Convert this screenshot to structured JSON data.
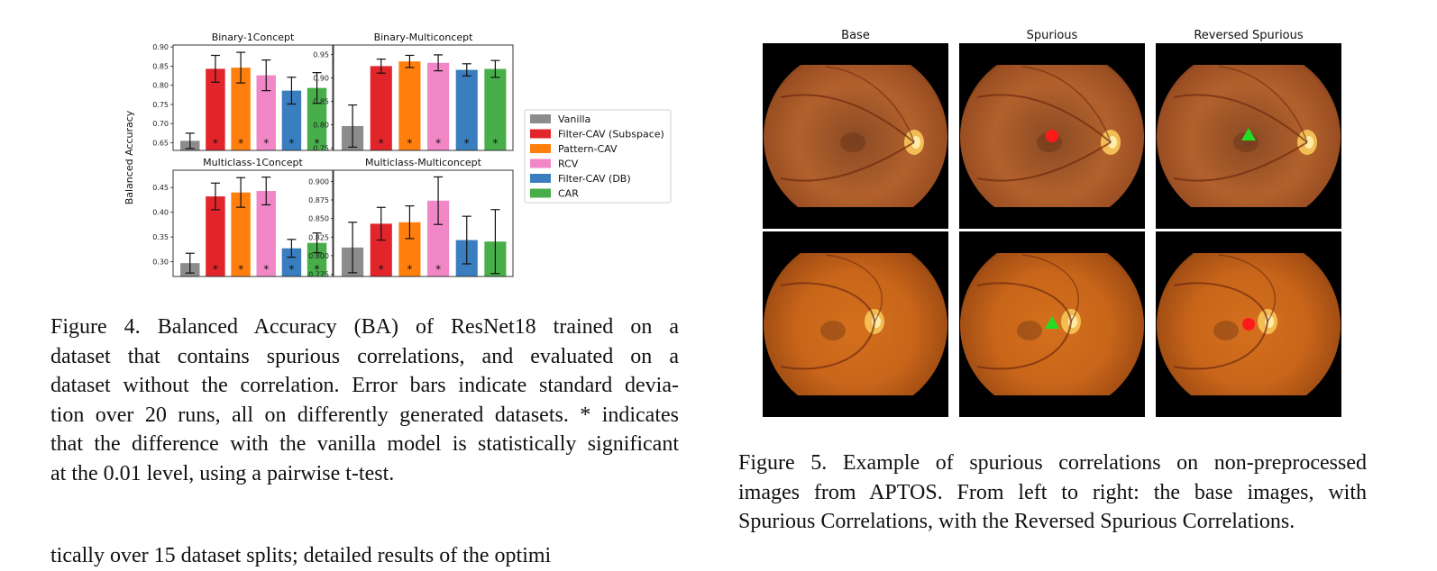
{
  "figure4": {
    "ylabel": "Balanced Accuracy",
    "legend": [
      {
        "name": "Vanilla",
        "color": "#8c8c8c"
      },
      {
        "name": "Filter-CAV (Subspace)",
        "color": "#e1252b"
      },
      {
        "name": "Pattern-CAV",
        "color": "#ff7f0e"
      },
      {
        "name": "RCV",
        "color": "#f287c7"
      },
      {
        "name": "Filter-CAV (DB)",
        "color": "#3a7ebf"
      },
      {
        "name": "CAR",
        "color": "#47ae4a"
      }
    ],
    "caption_lines": [
      "Figure 4.  Balanced Accuracy (BA) of ResNet18 trained on a",
      "dataset that contains spurious correlations, and evaluated on a",
      "dataset without the correlation. Error bars indicate standard devia-",
      "tion over 20 runs, all on differently generated datasets. * indicates",
      "that the difference with the vanilla model is statistically significant",
      "at the 0.01 level, using a pairwise t-test."
    ]
  },
  "chart_data": [
    {
      "type": "bar",
      "title": "Binary-1Concept",
      "categories": [
        "Vanilla",
        "Filter-CAV (Subspace)",
        "Pattern-CAV",
        "RCV",
        "Filter-CAV (DB)",
        "CAR"
      ],
      "values": [
        0.655,
        0.843,
        0.846,
        0.826,
        0.786,
        0.793
      ],
      "errors": [
        0.02,
        0.035,
        0.04,
        0.04,
        0.035,
        0.04
      ],
      "significant": [
        false,
        true,
        true,
        true,
        true,
        true
      ],
      "ylim": [
        0.63,
        0.905
      ],
      "yticks": [
        "0.65",
        "0.70",
        "0.75",
        "0.80",
        "0.85",
        "0.90"
      ],
      "ytick_values": [
        0.65,
        0.7,
        0.75,
        0.8,
        0.85,
        0.9
      ]
    },
    {
      "type": "bar",
      "title": "Binary-Multiconcept",
      "categories": [
        "Vanilla",
        "Filter-CAV (Subspace)",
        "Pattern-CAV",
        "RCV",
        "Filter-CAV (DB)",
        "CAR"
      ],
      "values": [
        0.797,
        0.925,
        0.935,
        0.932,
        0.917,
        0.919
      ],
      "errors": [
        0.045,
        0.015,
        0.013,
        0.017,
        0.013,
        0.018
      ],
      "significant": [
        false,
        true,
        true,
        true,
        true,
        true
      ],
      "ylim": [
        0.745,
        0.97
      ],
      "yticks": [
        "0.75",
        "0.80",
        "0.85",
        "0.90",
        "0.95"
      ],
      "ytick_values": [
        0.75,
        0.8,
        0.85,
        0.9,
        0.95
      ]
    },
    {
      "type": "bar",
      "title": "Multiclass-1Concept",
      "categories": [
        "Vanilla",
        "Filter-CAV (Subspace)",
        "Pattern-CAV",
        "RCV",
        "Filter-CAV (DB)",
        "CAR"
      ],
      "values": [
        0.297,
        0.432,
        0.44,
        0.443,
        0.327,
        0.338
      ],
      "errors": [
        0.02,
        0.027,
        0.03,
        0.028,
        0.018,
        0.02
      ],
      "significant": [
        false,
        true,
        true,
        true,
        true,
        true
      ],
      "ylim": [
        0.27,
        0.485
      ],
      "yticks": [
        "0.30",
        "0.35",
        "0.40",
        "0.45"
      ],
      "ytick_values": [
        0.3,
        0.35,
        0.4,
        0.45
      ]
    },
    {
      "type": "bar",
      "title": "Multiclass-Multiconcept",
      "categories": [
        "Vanilla",
        "Filter-CAV (Subspace)",
        "Pattern-CAV",
        "RCV",
        "Filter-CAV (DB)",
        "CAR"
      ],
      "values": [
        0.811,
        0.843,
        0.845,
        0.874,
        0.821,
        0.819
      ],
      "errors": [
        0.034,
        0.022,
        0.022,
        0.032,
        0.032,
        0.043
      ],
      "significant": [
        false,
        true,
        true,
        true,
        false,
        false
      ],
      "ylim": [
        0.772,
        0.915
      ],
      "yticks": [
        "0.775",
        "0.800",
        "0.825",
        "0.850",
        "0.875",
        "0.900"
      ],
      "ytick_values": [
        0.775,
        0.8,
        0.825,
        0.85,
        0.875,
        0.9
      ]
    }
  ],
  "figure5": {
    "columns": [
      "Base",
      "Spurious",
      "Reversed Spurious"
    ],
    "rows": [
      [
        {
          "marker": "none"
        },
        {
          "marker": "circle",
          "marker_color": "#ff1a1a"
        },
        {
          "marker": "triangle",
          "marker_color": "#22dd22"
        }
      ],
      [
        {
          "marker": "none"
        },
        {
          "marker": "triangle",
          "marker_color": "#22dd22"
        },
        {
          "marker": "circle",
          "marker_color": "#ff1a1a"
        }
      ]
    ],
    "caption_lines": [
      "Figure 5.  Example of spurious correlations on non-preprocessed",
      "images from APTOS. From left to right:  the base images, with",
      "Spurious Correlations, with the Reversed Spurious Correlations."
    ]
  },
  "body_text": "tically over 15 dataset splits; detailed results of the optimi"
}
